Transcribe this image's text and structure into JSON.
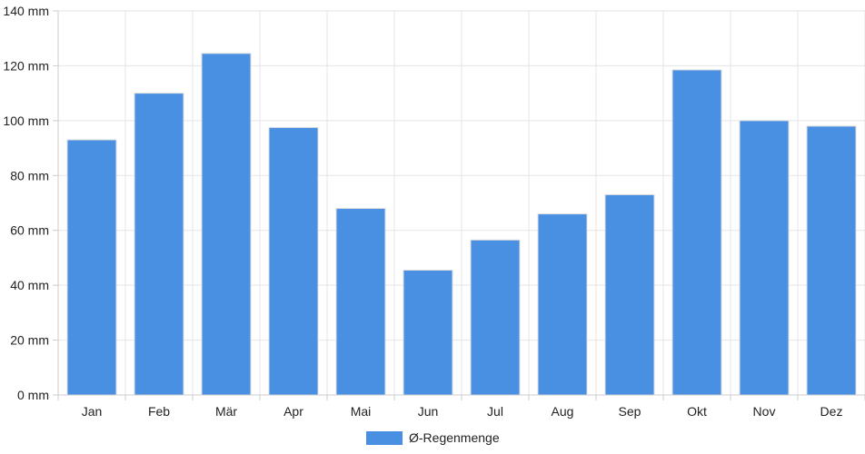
{
  "chart_data": {
    "type": "bar",
    "categories": [
      "Jan",
      "Feb",
      "Mär",
      "Apr",
      "Mai",
      "Jun",
      "Jul",
      "Aug",
      "Sep",
      "Okt",
      "Nov",
      "Dez"
    ],
    "series": [
      {
        "name": "Ø-Regenmenge",
        "color": "#4a90e2",
        "values": [
          93,
          110,
          124.5,
          97.5,
          68,
          45.5,
          56.5,
          66,
          73,
          118.5,
          100,
          98
        ]
      }
    ],
    "y_ticks": [
      "0 mm",
      "20 mm",
      "40 mm",
      "60 mm",
      "80 mm",
      "100 mm",
      "120 mm",
      "140 mm"
    ],
    "ylim": [
      0,
      140
    ],
    "y_step": 20,
    "grid": true,
    "legend_position": "bottom-center"
  }
}
